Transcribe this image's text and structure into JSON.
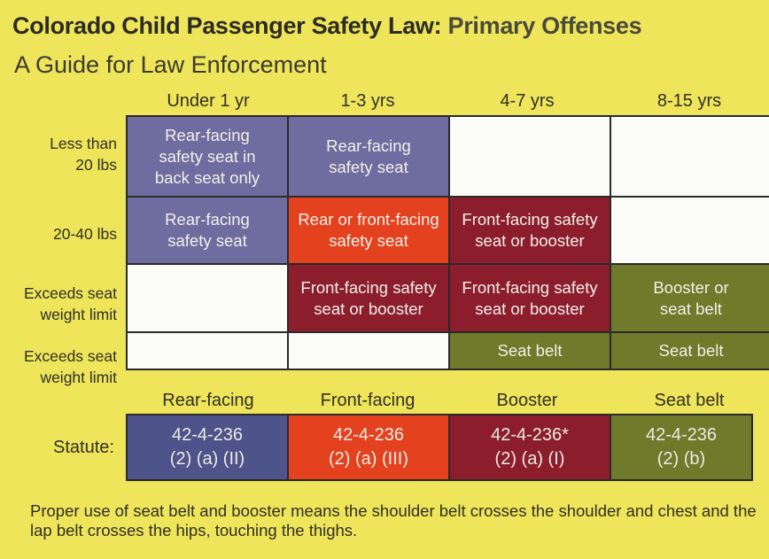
{
  "header": {
    "title_main": "Colorado Child Passenger Safety Law:",
    "title_emphasis": "Primary Offenses",
    "subtitle": "A Guide for Law Enforcement"
  },
  "columns": [
    "Under 1 yr",
    "1-3 yrs",
    "4-7 yrs",
    "8-15 yrs"
  ],
  "rows": [
    {
      "line1": "Less than",
      "line2": "20 lbs"
    },
    {
      "line1": "20-40 lbs",
      "line2": ""
    },
    {
      "line1": "Exceeds seat",
      "line2": "weight limit"
    },
    {
      "line1": "Exceeds seat",
      "line2": "weight limit"
    }
  ],
  "cells": {
    "r0c0": {
      "l1": "Rear-facing",
      "l2": "safety seat in",
      "l3": "back seat only"
    },
    "r0c1": {
      "l1": "Rear-facing",
      "l2": "safety seat"
    },
    "r1c0": {
      "l1": "Rear-facing",
      "l2": "safety seat"
    },
    "r1c1": {
      "l1": "Rear or front-facing",
      "l2": "safety seat"
    },
    "r1c2": {
      "l1": "Front-facing safety",
      "l2": "seat or booster"
    },
    "r2c1": {
      "l1": "Front-facing safety",
      "l2": "seat or booster"
    },
    "r2c2": {
      "l1": "Front-facing safety",
      "l2": "seat or booster"
    },
    "r2c3": {
      "l1": "Booster or",
      "l2": "seat belt"
    },
    "r3c2": {
      "l1": "Seat belt"
    },
    "r3c3": {
      "l1": "Seat belt"
    }
  },
  "statutes": {
    "label": "Statute:",
    "items": [
      {
        "category": "Rear-facing",
        "code": "42-4-236",
        "subsection": "(2) (a) (II)"
      },
      {
        "category": "Front-facing",
        "code": "42-4-236",
        "subsection": "(2) (a) (III)"
      },
      {
        "category": "Booster",
        "code": "42-4-236*",
        "subsection": "(2) (a) (I)"
      },
      {
        "category": "Seat belt",
        "code": "42-4-236",
        "subsection": "(2) (b)"
      }
    ]
  },
  "footnote": "Proper use of seat belt and booster means the shoulder belt crosses the shoulder and chest and the lap belt crosses the hips, touching the thighs.",
  "colors": {
    "background": "#efe55a",
    "rear_facing": "#6f6c9f",
    "front_facing": "#e4421f",
    "booster": "#8b1d2c",
    "seat_belt": "#6f7a2a",
    "statute_rear": "#4e538a"
  }
}
